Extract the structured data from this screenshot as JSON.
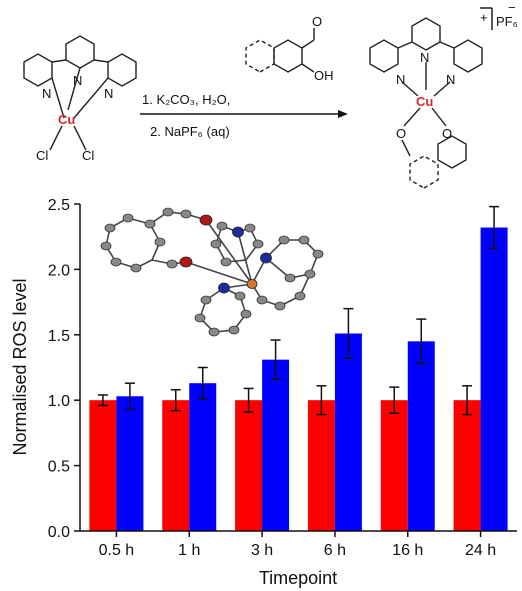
{
  "scheme": {
    "reagent_step1": "1. K₂CO₃, H₂O,",
    "reagent_step2": "2. NaPF₆ (aq)",
    "counterion": "PF₆",
    "counterion_charge": "−",
    "complex_charge": "+",
    "metal_label": "Cu",
    "ligand_n": "N",
    "ligand_cl": "Cl",
    "ligand_o": "O",
    "ligand_oh": "OH"
  },
  "colors": {
    "red_series": "#ff0000",
    "blue_series": "#0000ff",
    "copper": "#d8262b"
  },
  "chart_data": {
    "type": "bar",
    "xlabel": "Timepoint",
    "ylabel": "Normalised ROS level",
    "categories": [
      "0.5 h",
      "1 h",
      "3 h",
      "6 h",
      "16 h",
      "24 h"
    ],
    "ylim": [
      0,
      2.5
    ],
    "yticks": [
      "0.0",
      "0.5",
      "1.0",
      "1.5",
      "2.0",
      "2.5"
    ],
    "grid": false,
    "series": [
      {
        "color": "#ff0000",
        "values": [
          1.0,
          1.0,
          1.0,
          1.0,
          1.0,
          1.0
        ],
        "errors": [
          0.04,
          0.08,
          0.09,
          0.11,
          0.1,
          0.11
        ]
      },
      {
        "color": "#0000ff",
        "values": [
          1.03,
          1.13,
          1.31,
          1.51,
          1.45,
          2.32
        ],
        "errors": [
          0.1,
          0.12,
          0.15,
          0.19,
          0.17,
          0.16
        ]
      }
    ]
  }
}
